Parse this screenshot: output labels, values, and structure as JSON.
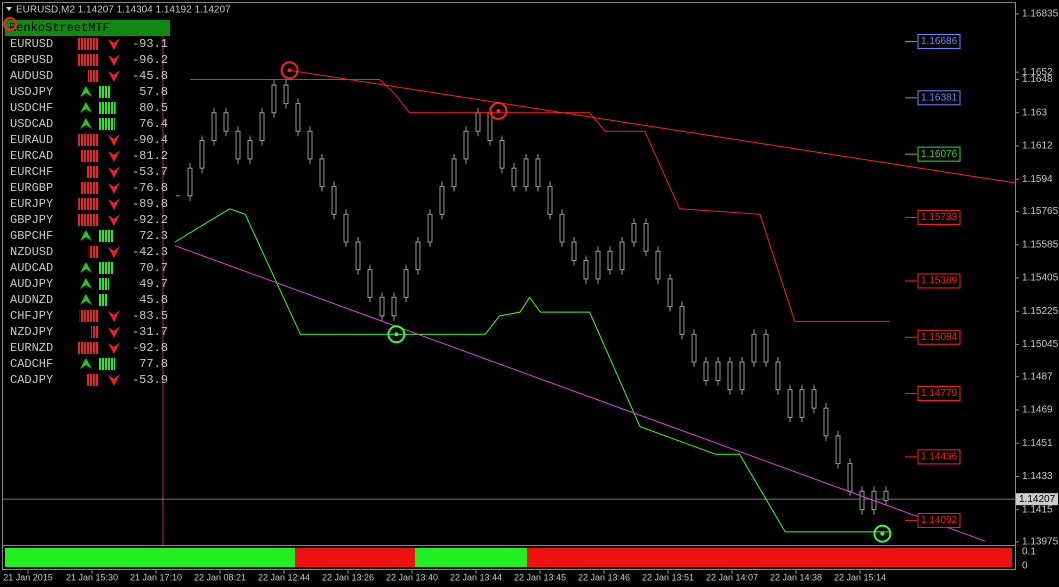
{
  "header": {
    "title": "EURUSD,M2  1.14207 1.14304 1.14192 1.14207"
  },
  "panel": {
    "title": "RenkoStreetMTF",
    "rows": [
      {
        "symbol": "EURUSD",
        "value": -93.1,
        "direction": "down"
      },
      {
        "symbol": "GBPUSD",
        "value": -96.2,
        "direction": "down"
      },
      {
        "symbol": "AUDUSD",
        "value": -45.8,
        "direction": "down"
      },
      {
        "symbol": "USDJPY",
        "value": 57.8,
        "direction": "up"
      },
      {
        "symbol": "USDCHF",
        "value": 80.5,
        "direction": "up"
      },
      {
        "symbol": "USDCAD",
        "value": 76.4,
        "direction": "up"
      },
      {
        "symbol": "EURAUD",
        "value": -90.4,
        "direction": "down"
      },
      {
        "symbol": "EURCAD",
        "value": -81.2,
        "direction": "down"
      },
      {
        "symbol": "EURCHF",
        "value": -53.7,
        "direction": "down"
      },
      {
        "symbol": "EURGBP",
        "value": -76.8,
        "direction": "down"
      },
      {
        "symbol": "EURJPY",
        "value": -89.8,
        "direction": "down"
      },
      {
        "symbol": "GBPJPY",
        "value": -92.2,
        "direction": "down"
      },
      {
        "symbol": "GBPCHF",
        "value": 72.3,
        "direction": "up"
      },
      {
        "symbol": "NZDUSD",
        "value": -42.3,
        "direction": "down"
      },
      {
        "symbol": "AUDCAD",
        "value": 70.7,
        "direction": "up"
      },
      {
        "symbol": "AUDJPY",
        "value": 49.7,
        "direction": "up"
      },
      {
        "symbol": "AUDNZD",
        "value": 45.8,
        "direction": "up"
      },
      {
        "symbol": "CHFJPY",
        "value": -83.5,
        "direction": "down"
      },
      {
        "symbol": "NZDJPY",
        "value": -31.7,
        "direction": "down"
      },
      {
        "symbol": "EURNZD",
        "value": -92.8,
        "direction": "down"
      },
      {
        "symbol": "CADCHF",
        "value": 77.8,
        "direction": "up"
      },
      {
        "symbol": "CADJPY",
        "value": -53.9,
        "direction": "down"
      }
    ]
  },
  "price_axis": {
    "ylim": [
      1.13975,
      1.16835
    ],
    "ticks": [
      1.16835,
      1.1652,
      1.1648,
      1.163,
      1.1612,
      1.1594,
      1.15765,
      1.15585,
      1.15405,
      1.15225,
      1.15045,
      1.1487,
      1.1469,
      1.1451,
      1.1433,
      1.1415,
      1.13975
    ],
    "current": 1.14207
  },
  "levels": [
    {
      "value": 1.16686,
      "color": "#6b8cff"
    },
    {
      "value": 1.16381,
      "color": "#6b8cff"
    },
    {
      "value": 1.16076,
      "color": "#33dd33"
    },
    {
      "value": 1.15733,
      "color": "#ff2020"
    },
    {
      "value": 1.15389,
      "color": "#ff2020"
    },
    {
      "value": 1.15084,
      "color": "#ff2020"
    },
    {
      "value": 1.14779,
      "color": "#ff2020"
    },
    {
      "value": 1.14436,
      "color": "#ff2020"
    },
    {
      "value": 1.14092,
      "color": "#ff2020"
    }
  ],
  "candles": [
    1.1585,
    1.16,
    1.1615,
    1.163,
    1.162,
    1.1605,
    1.1615,
    1.163,
    1.1645,
    1.1635,
    1.162,
    1.1605,
    1.159,
    1.1575,
    1.156,
    1.1545,
    1.153,
    1.152,
    1.153,
    1.1545,
    1.156,
    1.1575,
    1.159,
    1.1605,
    1.162,
    1.163,
    1.1615,
    1.16,
    1.159,
    1.1605,
    1.159,
    1.1575,
    1.156,
    1.155,
    1.154,
    1.1555,
    1.1545,
    1.156,
    1.157,
    1.1555,
    1.154,
    1.1525,
    1.151,
    1.1495,
    1.1485,
    1.1495,
    1.148,
    1.1495,
    1.151,
    1.1495,
    1.148,
    1.1465,
    1.148,
    1.147,
    1.1455,
    1.144,
    1.1425,
    1.1415,
    1.1425,
    1.142
  ],
  "lines": [
    {
      "color": "#ff2020",
      "index": [
        1,
        16.8,
        18.1,
        19.3,
        34.3,
        35.6,
        38.9,
        41.8,
        48.5,
        51.4,
        59.3
      ],
      "price": [
        1.1648,
        1.1648,
        1.164,
        1.163,
        1.163,
        1.162,
        1.162,
        1.1578,
        1.1575,
        1.1517,
        1.1517
      ]
    },
    {
      "color": "#33ff33",
      "index": [
        -0.25,
        4.3,
        5.6,
        10.2,
        25.6,
        26.8,
        28.5,
        29.3,
        30.2,
        34.3,
        38.5,
        44.8,
        46.8,
        50.6,
        59.3
      ],
      "price": [
        1.156,
        1.1578,
        1.1575,
        1.151,
        1.151,
        1.152,
        1.1522,
        1.153,
        1.1522,
        1.1522,
        1.146,
        1.1445,
        1.1445,
        1.1403,
        1.1403
      ]
    },
    {
      "color": "#e040e0",
      "index": [
        -0.25,
        67.25
      ],
      "price": [
        1.1558,
        1.1398
      ]
    },
    {
      "color": "#ff2020",
      "index": [
        9.3,
        69.75
      ],
      "price": [
        1.1653,
        1.1592
      ]
    }
  ],
  "markers": [
    {
      "color": "#ff2020",
      "index": 9.3,
      "price": 1.1653
    },
    {
      "color": "#ff2020",
      "index": 26.7,
      "price": 1.1631
    },
    {
      "color": "#33ff33",
      "index": 18.2,
      "price": 1.151
    },
    {
      "color": "#33ff33",
      "index": 58.7,
      "price": 1.1402
    }
  ],
  "time_axis": [
    "21 Jan 2015",
    "21 Jan 15:30",
    "21 Jan 17:10",
    "22 Jan 08:21",
    "22 Jan 12:44",
    "22 Jan 13:26",
    "22 Jan 13:40",
    "22 Jan 13:44",
    "22 Jan 13:45",
    "22 Jan 13:46",
    "22 Jan 13:51",
    "22 Jan 14:07",
    "22 Jan 14:38",
    "22 Jan 15:14"
  ],
  "sub_axis": [
    0.1,
    0
  ]
}
